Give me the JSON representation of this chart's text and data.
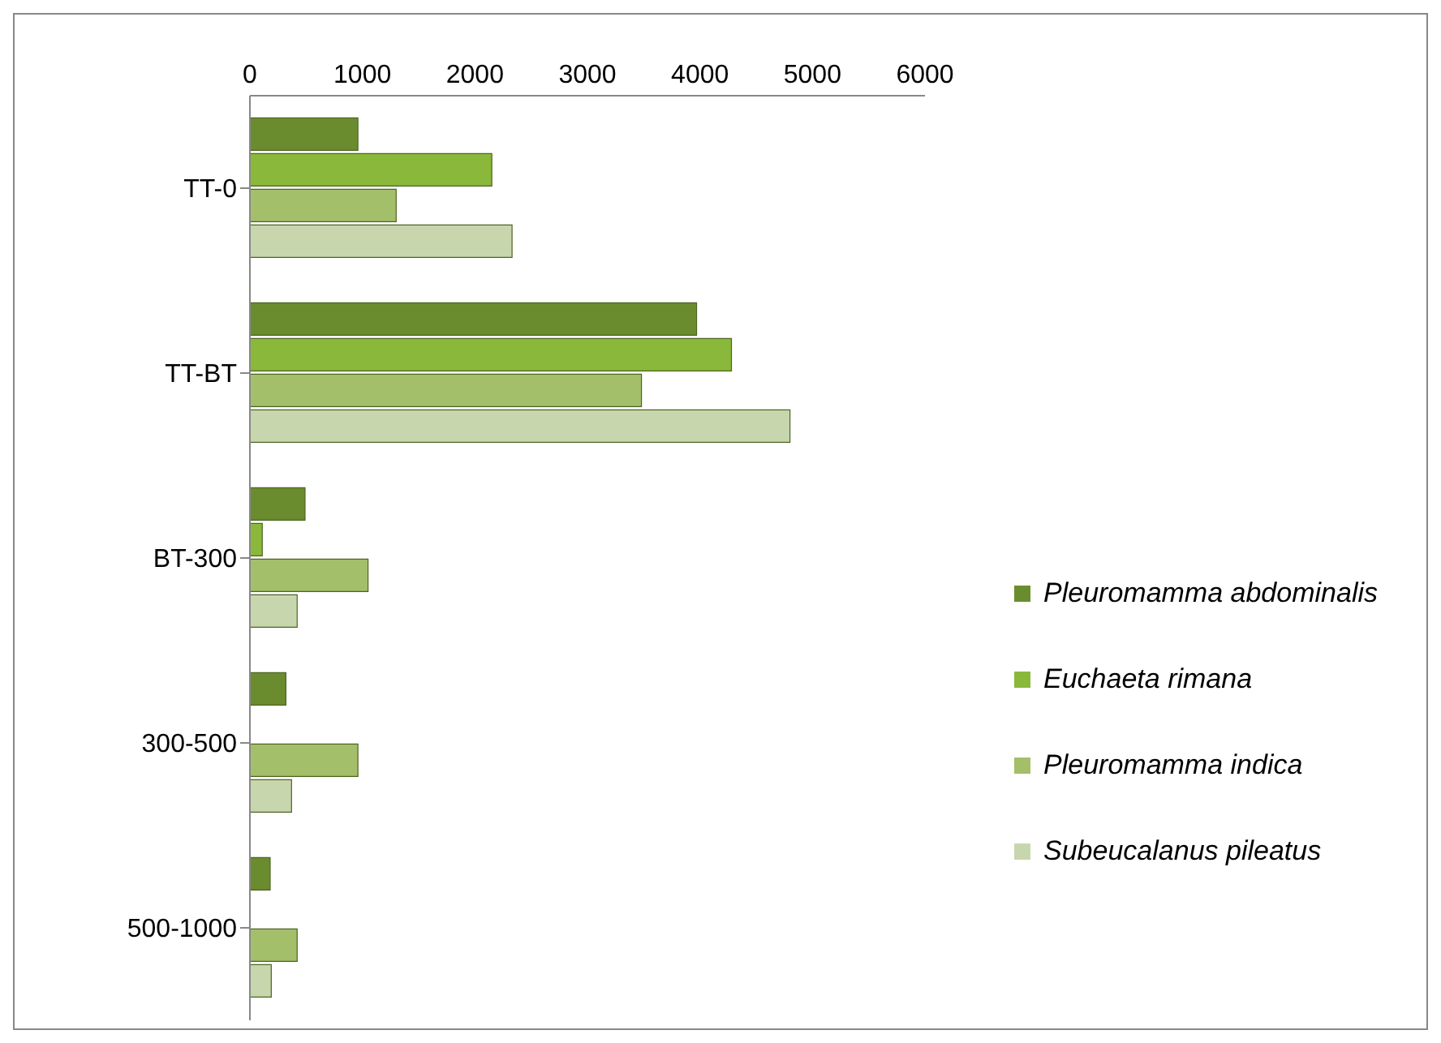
{
  "chart_data": {
    "type": "bar",
    "orientation": "horizontal",
    "categories": [
      "TT-0",
      "TT-BT",
      "BT-300",
      "300-500",
      "500-1000"
    ],
    "series": [
      {
        "name": "Pleuromamma abdominalis",
        "color": "#6b8c2e",
        "values": [
          960,
          3970,
          490,
          320,
          180
        ]
      },
      {
        "name": "Euchaeta rimana",
        "color": "#8ab83a",
        "values": [
          2150,
          4280,
          110,
          0,
          0
        ]
      },
      {
        "name": "Pleuromamma indica",
        "color": "#a3bf6a",
        "values": [
          1300,
          3480,
          1050,
          960,
          420
        ]
      },
      {
        "name": "Subeucalanus pileatus",
        "color": "#c8d6ae",
        "values": [
          2330,
          4800,
          420,
          370,
          190
        ]
      }
    ],
    "xlim": [
      0,
      6000
    ],
    "xticks": [
      0,
      1000,
      2000,
      3000,
      4000,
      5000,
      6000
    ],
    "grid": false,
    "legend": "right"
  }
}
